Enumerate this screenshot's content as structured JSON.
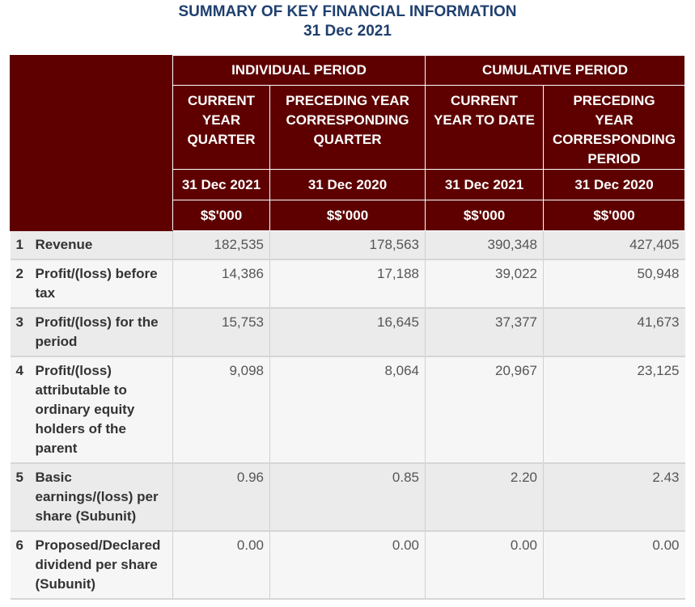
{
  "title": "SUMMARY OF KEY FINANCIAL INFORMATION",
  "subtitle": "31 Dec 2021",
  "periods": {
    "individual": "INDIVIDUAL PERIOD",
    "cumulative": "CUMULATIVE PERIOD"
  },
  "columns": [
    {
      "heading_lines": [
        "CURRENT",
        "YEAR",
        "QUARTER"
      ],
      "date": "31 Dec 2021",
      "unit": "$$'000"
    },
    {
      "heading_lines": [
        "PRECEDING YEAR",
        "CORRESPONDING",
        "QUARTER"
      ],
      "date": "31 Dec 2020",
      "unit": "$$'000"
    },
    {
      "heading_lines": [
        "CURRENT",
        "YEAR TO DATE"
      ],
      "date": "31 Dec 2021",
      "unit": "$$'000"
    },
    {
      "heading_lines": [
        "PRECEDING",
        "YEAR",
        "CORRESPONDING",
        "PERIOD"
      ],
      "date": "31 Dec 2020",
      "unit": "$$'000"
    }
  ],
  "rows": [
    {
      "no": "1",
      "label": "Revenue",
      "values": [
        "182,535",
        "178,563",
        "390,348",
        "427,405"
      ]
    },
    {
      "no": "2",
      "label": "Profit/(loss) before tax",
      "values": [
        "14,386",
        "17,188",
        "39,022",
        "50,948"
      ]
    },
    {
      "no": "3",
      "label": "Profit/(loss) for the period",
      "values": [
        "15,753",
        "16,645",
        "37,377",
        "41,673"
      ]
    },
    {
      "no": "4",
      "label": "Profit/(loss) attributable to ordinary equity holders of the parent",
      "values": [
        "9,098",
        "8,064",
        "20,967",
        "23,125"
      ]
    },
    {
      "no": "5",
      "label": "Basic earnings/(loss) per share (Subunit)",
      "values": [
        "0.96",
        "0.85",
        "2.20",
        "2.43"
      ]
    },
    {
      "no": "6",
      "label": "Proposed/Declared dividend per share (Subunit)",
      "values": [
        "0.00",
        "0.00",
        "0.00",
        "0.00"
      ]
    }
  ],
  "colors": {
    "header_bg": "#5e0000",
    "title": "#1f3f6e",
    "row_odd": "#ebebeb",
    "row_even": "#f6f6f6"
  }
}
